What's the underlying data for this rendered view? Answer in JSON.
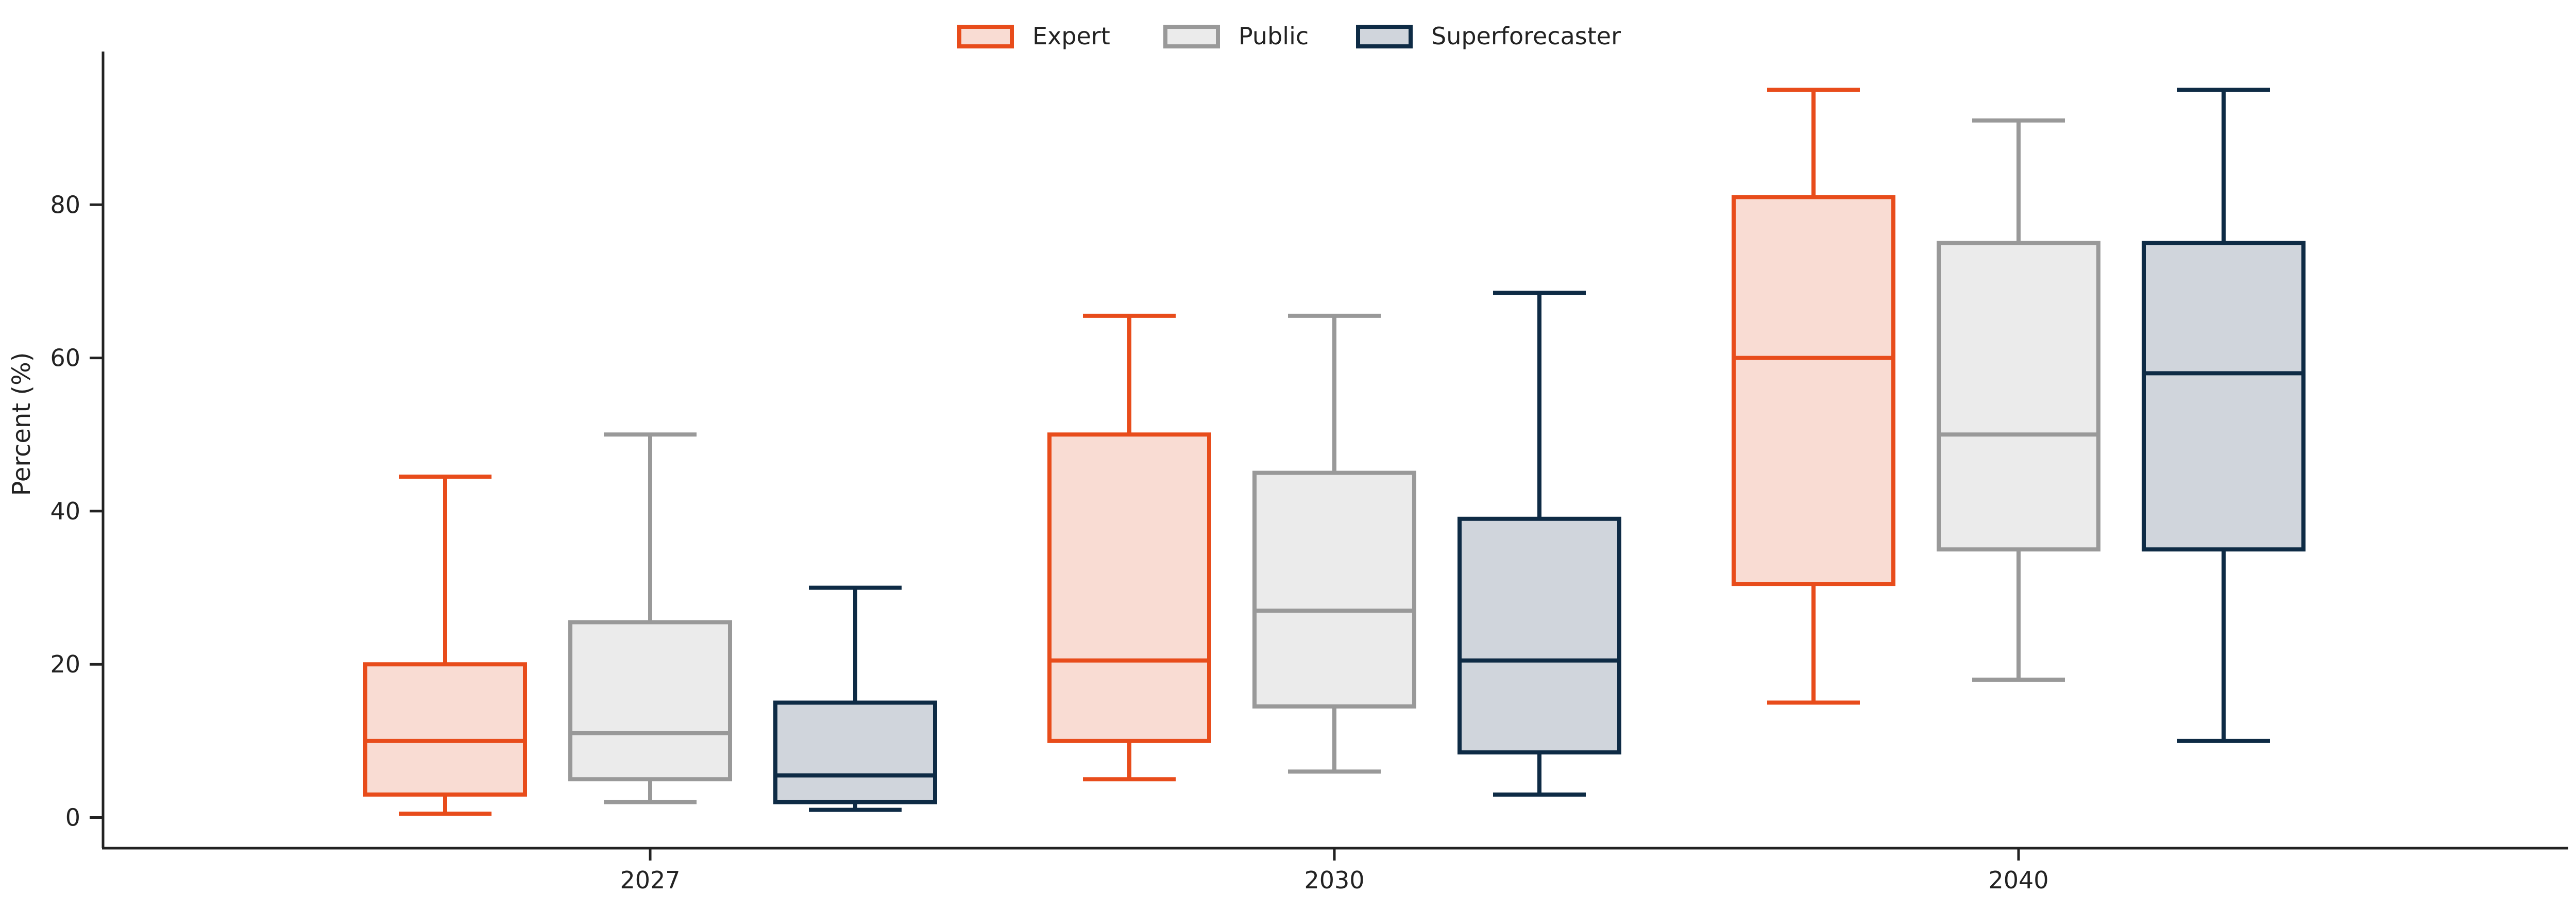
{
  "chart_data": {
    "type": "box",
    "categories": [
      "2027",
      "2030",
      "2040"
    ],
    "ylabel": "Percent (%)",
    "xlabel": "",
    "ylim": [
      -4,
      100
    ],
    "yticks": [
      0,
      20,
      40,
      60,
      80
    ],
    "legend_position": "top-center",
    "grid": false,
    "series": [
      {
        "name": "Expert",
        "stroke": "#e84c1b",
        "fill": "#f9dcd3",
        "boxes": [
          {
            "whisker_low": 0.5,
            "q1": 3,
            "median": 10,
            "q3": 20,
            "whisker_high": 44.5
          },
          {
            "whisker_low": 5,
            "q1": 10,
            "median": 20.5,
            "q3": 50,
            "whisker_high": 65.5
          },
          {
            "whisker_low": 15,
            "q1": 30.5,
            "median": 60,
            "q3": 81,
            "whisker_high": 95
          }
        ]
      },
      {
        "name": "Public",
        "stroke": "#999999",
        "fill": "#ebebeb",
        "boxes": [
          {
            "whisker_low": 2,
            "q1": 5,
            "median": 11,
            "q3": 25.5,
            "whisker_high": 50
          },
          {
            "whisker_low": 6,
            "q1": 14.5,
            "median": 27,
            "q3": 45,
            "whisker_high": 65.5
          },
          {
            "whisker_low": 18,
            "q1": 35,
            "median": 50,
            "q3": 75,
            "whisker_high": 91
          }
        ]
      },
      {
        "name": "Superforecaster",
        "stroke": "#0e2b45",
        "fill": "#d0d5dc",
        "boxes": [
          {
            "whisker_low": 1,
            "q1": 2,
            "median": 5.5,
            "q3": 15,
            "whisker_high": 30
          },
          {
            "whisker_low": 3,
            "q1": 8.5,
            "median": 20.5,
            "q3": 39,
            "whisker_high": 68.5
          },
          {
            "whisker_low": 10,
            "q1": 35,
            "median": 58,
            "q3": 75,
            "whisker_high": 95
          }
        ]
      }
    ]
  }
}
